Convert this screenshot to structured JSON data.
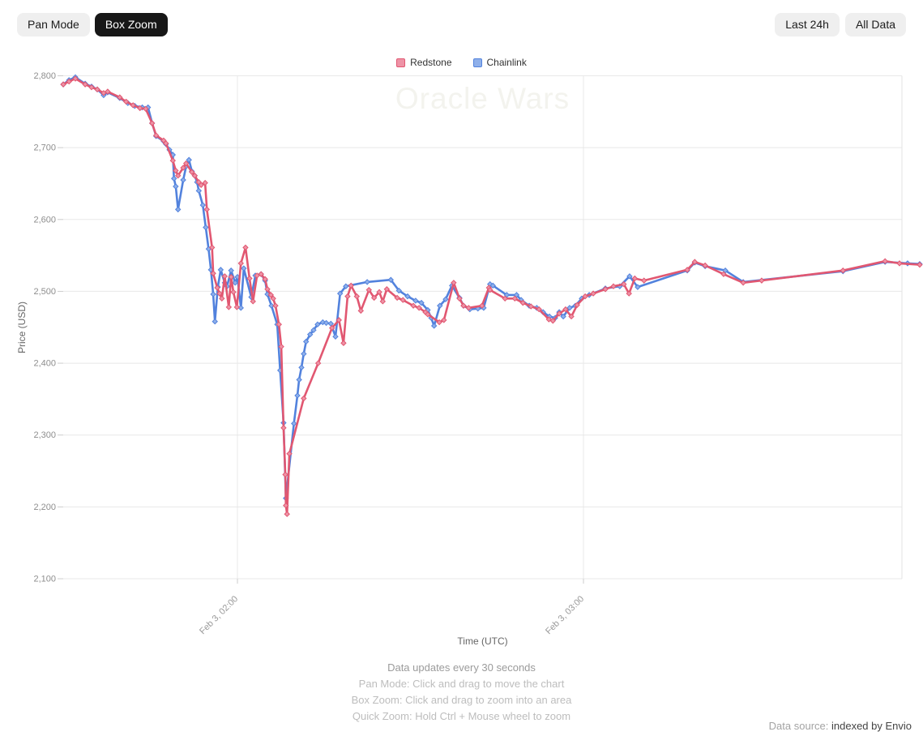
{
  "toolbar": {
    "pan_mode": "Pan Mode",
    "box_zoom": "Box Zoom",
    "last_24h": "Last 24h",
    "all_data": "All Data"
  },
  "legend": [
    {
      "name": "Redstone",
      "color": "#e15771",
      "fill": "#ee93a6"
    },
    {
      "name": "Chainlink",
      "color": "#5282dd",
      "fill": "#8fb0ea"
    }
  ],
  "watermark": "Oracle Wars",
  "footer": {
    "notes": [
      "Data updates every 30 seconds",
      "Pan Mode: Click and drag to move the chart",
      "Box Zoom: Click and drag to zoom into an area",
      "Quick Zoom: Hold Ctrl + Mouse wheel to zoom"
    ]
  },
  "data_source": {
    "label": "Data source: ",
    "value": "indexed by Envio"
  },
  "chart_data": {
    "type": "line",
    "title": "Oracle Wars",
    "xlabel": "Time (UTC)",
    "ylabel": "Price (USD)",
    "ylim": [
      2100,
      2800
    ],
    "x_unit": "minutes since Feb 3 00:00 UTC",
    "grid": true,
    "legend_position": "top-center",
    "y_ticks": [
      {
        "value": 2800,
        "label": "2,800"
      },
      {
        "value": 2700,
        "label": "2,700"
      },
      {
        "value": 2600,
        "label": "2,600"
      },
      {
        "value": 2500,
        "label": "2,500"
      },
      {
        "value": 2400,
        "label": "2,400"
      },
      {
        "value": 2300,
        "label": "2,300"
      },
      {
        "value": 2200,
        "label": "2,200"
      },
      {
        "value": 2100,
        "label": "2,100"
      }
    ],
    "x_ticks": [
      {
        "t": 120,
        "label": "Feb 3, 02:00"
      },
      {
        "t": 180,
        "label": "Feb 3, 03:00"
      }
    ],
    "series": [
      {
        "name": "Chainlink",
        "color": "#5282dd",
        "marker_fill": "#8fb0ea",
        "points": [
          [
            89.8,
            2788
          ],
          [
            90.8,
            2794
          ],
          [
            91.9,
            2798
          ],
          [
            93.6,
            2789
          ],
          [
            94.7,
            2785
          ],
          [
            95.7,
            2781
          ],
          [
            96.8,
            2773
          ],
          [
            97.5,
            2777
          ],
          [
            99.6,
            2769
          ],
          [
            101.0,
            2762
          ],
          [
            102.2,
            2758
          ],
          [
            103.5,
            2756
          ],
          [
            104.5,
            2756
          ],
          [
            105.2,
            2734
          ],
          [
            105.9,
            2716
          ],
          [
            107.2,
            2709
          ],
          [
            107.6,
            2705
          ],
          [
            108.2,
            2697
          ],
          [
            108.8,
            2690
          ],
          [
            109.0,
            2657
          ],
          [
            109.3,
            2646
          ],
          [
            109.7,
            2614
          ],
          [
            110.6,
            2655
          ],
          [
            111.1,
            2674
          ],
          [
            111.6,
            2683
          ],
          [
            112.1,
            2667
          ],
          [
            112.6,
            2661
          ],
          [
            113.0,
            2652
          ],
          [
            113.3,
            2640
          ],
          [
            114.0,
            2620
          ],
          [
            114.5,
            2589
          ],
          [
            115.0,
            2559
          ],
          [
            115.4,
            2530
          ],
          [
            115.8,
            2496
          ],
          [
            116.1,
            2458
          ],
          [
            116.6,
            2506
          ],
          [
            117.1,
            2530
          ],
          [
            117.8,
            2512
          ],
          [
            118.2,
            2507
          ],
          [
            118.9,
            2529
          ],
          [
            119.6,
            2512
          ],
          [
            120.0,
            2520
          ],
          [
            120.6,
            2477
          ],
          [
            121.1,
            2532
          ],
          [
            122.4,
            2492
          ],
          [
            123.1,
            2522
          ],
          [
            124.1,
            2524
          ],
          [
            124.8,
            2515
          ],
          [
            125.2,
            2496
          ],
          [
            125.9,
            2480
          ],
          [
            126.9,
            2454
          ],
          [
            127.4,
            2390
          ],
          [
            128.0,
            2317
          ],
          [
            128.4,
            2212
          ],
          [
            129.8,
            2316
          ],
          [
            130.4,
            2355
          ],
          [
            130.7,
            2377
          ],
          [
            131.1,
            2394
          ],
          [
            131.5,
            2413
          ],
          [
            131.9,
            2430
          ],
          [
            132.6,
            2440
          ],
          [
            133.2,
            2446
          ],
          [
            133.9,
            2454
          ],
          [
            134.8,
            2457
          ],
          [
            135.4,
            2456
          ],
          [
            136.2,
            2455
          ],
          [
            137.0,
            2437
          ],
          [
            137.8,
            2497
          ],
          [
            138.8,
            2507
          ],
          [
            142.5,
            2513
          ],
          [
            146.6,
            2516
          ],
          [
            148.0,
            2501
          ],
          [
            149.5,
            2493
          ],
          [
            150.9,
            2487
          ],
          [
            151.9,
            2484
          ],
          [
            153.0,
            2474
          ],
          [
            153.6,
            2463
          ],
          [
            154.1,
            2452
          ],
          [
            155.1,
            2480
          ],
          [
            156.1,
            2489
          ],
          [
            157.2,
            2508
          ],
          [
            158.5,
            2491
          ],
          [
            159.2,
            2480
          ],
          [
            160.3,
            2475
          ],
          [
            161.7,
            2476
          ],
          [
            162.7,
            2477
          ],
          [
            163.8,
            2510
          ],
          [
            164.3,
            2508
          ],
          [
            166.7,
            2495
          ],
          [
            168.4,
            2495
          ],
          [
            169.2,
            2488
          ],
          [
            170.6,
            2480
          ],
          [
            171.9,
            2477
          ],
          [
            173.0,
            2471
          ],
          [
            174.1,
            2465
          ],
          [
            175.1,
            2463
          ],
          [
            175.8,
            2471
          ],
          [
            176.5,
            2465
          ],
          [
            177.6,
            2477
          ],
          [
            178.6,
            2480
          ],
          [
            179.7,
            2490
          ],
          [
            181.0,
            2495
          ],
          [
            183.8,
            2504
          ],
          [
            186.3,
            2507
          ],
          [
            188.0,
            2521
          ],
          [
            189.4,
            2506
          ],
          [
            198.0,
            2529
          ],
          [
            199.3,
            2540
          ],
          [
            201.1,
            2535
          ],
          [
            204.6,
            2529
          ],
          [
            207.7,
            2513
          ],
          [
            225.0,
            2528
          ],
          [
            232.3,
            2541
          ],
          [
            236.2,
            2539
          ],
          [
            238.3,
            2538
          ]
        ]
      },
      {
        "name": "Redstone",
        "color": "#e15771",
        "marker_fill": "#ee93a6",
        "points": [
          [
            89.8,
            2788
          ],
          [
            90.8,
            2792
          ],
          [
            91.9,
            2796
          ],
          [
            93.6,
            2788
          ],
          [
            94.7,
            2784
          ],
          [
            95.7,
            2781
          ],
          [
            96.8,
            2776
          ],
          [
            97.5,
            2778
          ],
          [
            99.6,
            2770
          ],
          [
            100.7,
            2764
          ],
          [
            101.9,
            2759
          ],
          [
            103.1,
            2755
          ],
          [
            104.1,
            2754
          ],
          [
            105.2,
            2734
          ],
          [
            105.9,
            2717
          ],
          [
            107.2,
            2710
          ],
          [
            107.6,
            2706
          ],
          [
            108.8,
            2682
          ],
          [
            109.3,
            2668
          ],
          [
            109.7,
            2661
          ],
          [
            110.6,
            2672
          ],
          [
            111.1,
            2678
          ],
          [
            112.1,
            2666
          ],
          [
            112.6,
            2661
          ],
          [
            113.3,
            2652
          ],
          [
            113.7,
            2648
          ],
          [
            114.4,
            2651
          ],
          [
            114.7,
            2614
          ],
          [
            115.6,
            2561
          ],
          [
            115.8,
            2525
          ],
          [
            116.5,
            2505
          ],
          [
            116.9,
            2497
          ],
          [
            117.3,
            2490
          ],
          [
            117.8,
            2521
          ],
          [
            118.5,
            2478
          ],
          [
            118.9,
            2520
          ],
          [
            119.3,
            2499
          ],
          [
            119.9,
            2478
          ],
          [
            120.6,
            2539
          ],
          [
            121.4,
            2561
          ],
          [
            122.1,
            2518
          ],
          [
            122.7,
            2486
          ],
          [
            123.4,
            2522
          ],
          [
            124.1,
            2524
          ],
          [
            124.8,
            2517
          ],
          [
            125.2,
            2503
          ],
          [
            125.8,
            2495
          ],
          [
            126.2,
            2490
          ],
          [
            126.6,
            2480
          ],
          [
            127.2,
            2454
          ],
          [
            127.6,
            2423
          ],
          [
            128.0,
            2310
          ],
          [
            128.3,
            2245
          ],
          [
            128.4,
            2202
          ],
          [
            128.6,
            2190
          ],
          [
            129.0,
            2274
          ],
          [
            131.5,
            2351
          ],
          [
            134.0,
            2400
          ],
          [
            136.4,
            2449
          ],
          [
            137.6,
            2460
          ],
          [
            138.4,
            2428
          ],
          [
            139.1,
            2493
          ],
          [
            139.7,
            2508
          ],
          [
            140.7,
            2493
          ],
          [
            141.4,
            2473
          ],
          [
            142.8,
            2502
          ],
          [
            143.7,
            2491
          ],
          [
            144.6,
            2499
          ],
          [
            145.2,
            2486
          ],
          [
            145.9,
            2503
          ],
          [
            147.7,
            2491
          ],
          [
            148.7,
            2488
          ],
          [
            150.5,
            2480
          ],
          [
            151.5,
            2477
          ],
          [
            152.6,
            2471
          ],
          [
            153.0,
            2468
          ],
          [
            155.0,
            2457
          ],
          [
            155.8,
            2460
          ],
          [
            157.5,
            2512
          ],
          [
            158.5,
            2490
          ],
          [
            159.2,
            2480
          ],
          [
            160.1,
            2477
          ],
          [
            162.4,
            2480
          ],
          [
            163.6,
            2505
          ],
          [
            163.8,
            2502
          ],
          [
            166.4,
            2490
          ],
          [
            168.1,
            2490
          ],
          [
            169.5,
            2484
          ],
          [
            170.9,
            2479
          ],
          [
            172.3,
            2475
          ],
          [
            174.0,
            2461
          ],
          [
            174.7,
            2459
          ],
          [
            175.8,
            2469
          ],
          [
            176.9,
            2475
          ],
          [
            177.9,
            2465
          ],
          [
            178.9,
            2481
          ],
          [
            180.3,
            2493
          ],
          [
            181.7,
            2497
          ],
          [
            183.8,
            2503
          ],
          [
            185.2,
            2507
          ],
          [
            187.0,
            2510
          ],
          [
            187.9,
            2497
          ],
          [
            188.9,
            2518
          ],
          [
            190.5,
            2515
          ],
          [
            198.0,
            2530
          ],
          [
            199.3,
            2541
          ],
          [
            201.1,
            2536
          ],
          [
            204.3,
            2524
          ],
          [
            207.7,
            2512
          ],
          [
            210.9,
            2515
          ],
          [
            225.0,
            2529
          ],
          [
            232.3,
            2542
          ],
          [
            234.8,
            2539
          ],
          [
            238.3,
            2537
          ]
        ]
      }
    ]
  }
}
